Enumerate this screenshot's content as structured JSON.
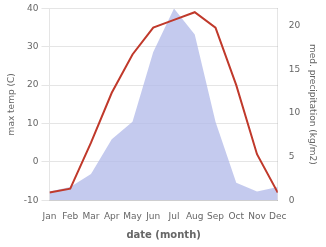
{
  "chart_data": {
    "type": "line",
    "xlabel": "date (month)",
    "ylabel": "max temp (C)",
    "y2label": "med. precipitation (kg/m2)",
    "categories": [
      "Jan",
      "Feb",
      "Mar",
      "Apr",
      "May",
      "Jun",
      "Jul",
      "Aug",
      "Sep",
      "Oct",
      "Nov",
      "Dec"
    ],
    "series": [
      {
        "type": "area",
        "axis": "y2",
        "color": "#b0b8e8",
        "values": [
          1.0,
          1.5,
          3.0,
          7.0,
          9.0,
          17.0,
          22.0,
          19.0,
          9.0,
          2.0,
          1.0,
          1.5
        ]
      },
      {
        "type": "line",
        "axis": "y",
        "color": "#c0392b",
        "values": [
          -8,
          -7,
          5,
          18,
          28,
          35,
          37,
          39,
          35,
          20,
          2,
          -8
        ]
      }
    ],
    "ylim": [
      -10,
      40
    ],
    "yticks": [
      -10,
      0,
      10,
      20,
      30,
      40
    ],
    "y2lim": [
      0,
      22
    ],
    "y2ticks": [
      0,
      5,
      10,
      15,
      20
    ],
    "grid": true
  }
}
